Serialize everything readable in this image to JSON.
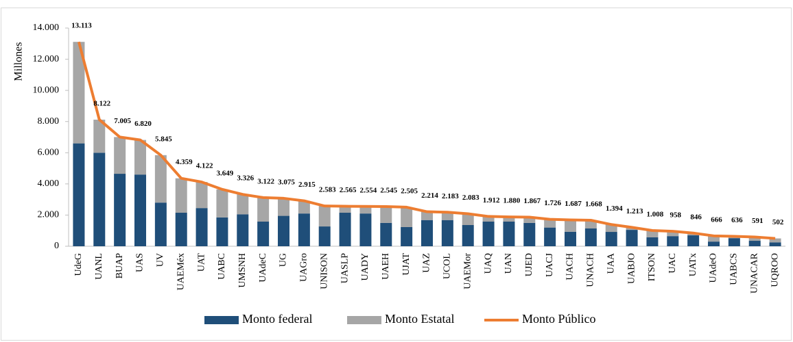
{
  "chart_data": {
    "type": "bar",
    "stacked": true,
    "ylabel": "Millones",
    "categories": [
      "UdeG",
      "UANL",
      "BUAP",
      "UAS",
      "UV",
      "UAEMéx",
      "UAT",
      "UABC",
      "UMSNH",
      "UAdeC",
      "UG",
      "UAGro",
      "UNISON",
      "UASLP",
      "UADY",
      "UAEH",
      "UJAT",
      "UAZ",
      "UCOL",
      "UAEMor",
      "UAQ",
      "UAN",
      "UJED",
      "UACJ",
      "UACH",
      "UNACH",
      "UAA",
      "UABJO",
      "ITSON",
      "UAC",
      "UATx",
      "UAdeO",
      "UABCS",
      "UNACAR",
      "UQROO"
    ],
    "series": [
      {
        "name": "Monto federal",
        "color": "#1f4e79",
        "type": "bar",
        "values": [
          6600,
          6000,
          4650,
          4600,
          2800,
          2150,
          2450,
          1850,
          2050,
          1580,
          1950,
          2100,
          1270,
          2150,
          2100,
          1500,
          1230,
          1680,
          1680,
          1360,
          1580,
          1580,
          1500,
          1200,
          930,
          1140,
          920,
          1050,
          570,
          650,
          700,
          300,
          520,
          350,
          250
        ]
      },
      {
        "name": "Monto Estatal",
        "color": "#a6a6a6",
        "type": "bar",
        "values": [
          6513,
          2122,
          2355,
          2220,
          3045,
          2209,
          1672,
          1799,
          1276,
          1542,
          1125,
          815,
          1313,
          415,
          454,
          1045,
          1275,
          534,
          503,
          723,
          332,
          300,
          367,
          526,
          757,
          528,
          474,
          163,
          438,
          308,
          146,
          366,
          116,
          241,
          252
        ]
      },
      {
        "name": "Monto Público",
        "color": "#ed7d31",
        "type": "line",
        "values": [
          13113,
          8122,
          7005,
          6820,
          5845,
          4359,
          4122,
          3649,
          3326,
          3122,
          3075,
          2915,
          2583,
          2565,
          2554,
          2545,
          2505,
          2214,
          2183,
          2083,
          1912,
          1880,
          1867,
          1726,
          1687,
          1668,
          1394,
          1213,
          1008,
          958,
          846,
          666,
          636,
          591,
          502
        ],
        "value_labels": [
          "13.113",
          "8.122",
          "7.005",
          "6.820",
          "5.845",
          "4.359",
          "4.122",
          "3.649",
          "3.326",
          "3.122",
          "3.075",
          "2.915",
          "2.583",
          "2.565",
          "2.554",
          "2.545",
          "2.505",
          "2.214",
          "2.183",
          "2.083",
          "1.912",
          "1.880",
          "1.867",
          "1.726",
          "1.687",
          "1.668",
          "1.394",
          "1.213",
          "1.008",
          "958",
          "846",
          "666",
          "636",
          "591",
          "502"
        ]
      }
    ],
    "ylim": [
      0,
      14000
    ],
    "yticks": [
      0,
      {
        "value": 2000,
        "label": "2.000"
      },
      {
        "value": 4000,
        "label": "4.000"
      },
      {
        "value": 6000,
        "label": "6.000"
      },
      {
        "value": 8000,
        "label": "8.000"
      },
      {
        "value": 10000,
        "label": "10.000"
      },
      {
        "value": 12000,
        "label": "12.000"
      },
      {
        "value": 14000,
        "label": "14.000"
      }
    ],
    "grid": false,
    "legend": "bottom"
  }
}
